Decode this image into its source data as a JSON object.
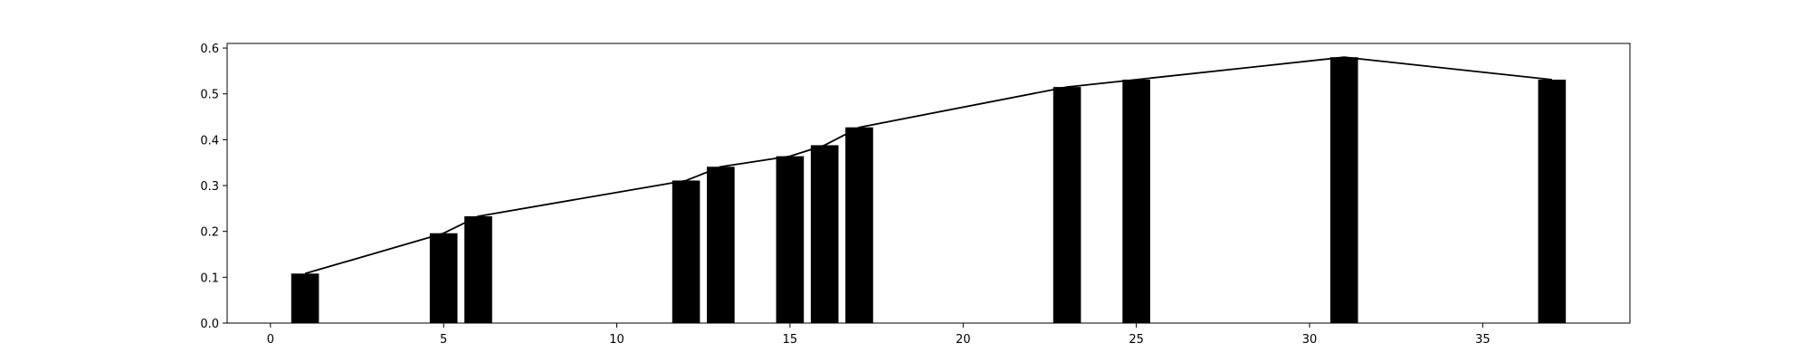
{
  "chart_data": {
    "type": "bar",
    "title": "",
    "xlabel": "",
    "ylabel": "",
    "xlim": [
      -1.25,
      39.25
    ],
    "ylim": [
      0,
      0.61
    ],
    "x_ticks": [
      0,
      5,
      10,
      15,
      20,
      25,
      30,
      35
    ],
    "x_tick_labels": [
      "0",
      "5",
      "10",
      "15",
      "20",
      "25",
      "30",
      "35"
    ],
    "y_ticks": [
      0.0,
      0.1,
      0.2,
      0.3,
      0.4,
      0.5,
      0.6
    ],
    "y_tick_labels": [
      "0.0",
      "0.1",
      "0.2",
      "0.3",
      "0.4",
      "0.5",
      "0.6"
    ],
    "bar_width": 0.8,
    "grid": false,
    "legend": "none",
    "bar_color": "#000000",
    "line_color": "#000000",
    "x": [
      1,
      5,
      6,
      12,
      13,
      15,
      16,
      17,
      23,
      25,
      31,
      37
    ],
    "values": [
      0.108,
      0.196,
      0.233,
      0.311,
      0.341,
      0.364,
      0.388,
      0.427,
      0.515,
      0.531,
      0.58,
      0.531
    ],
    "line": {
      "x": [
        1,
        5,
        6,
        12,
        13,
        15,
        16,
        17,
        23,
        25,
        31,
        37
      ],
      "y": [
        0.108,
        0.196,
        0.233,
        0.311,
        0.341,
        0.364,
        0.388,
        0.427,
        0.515,
        0.531,
        0.58,
        0.531
      ]
    }
  }
}
